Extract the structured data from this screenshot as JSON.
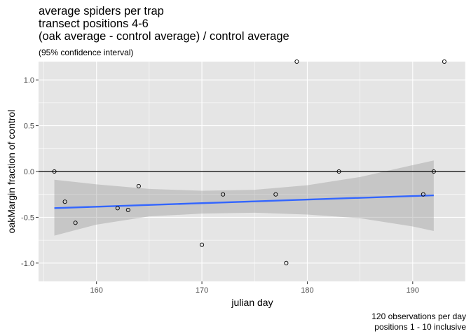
{
  "chart_data": {
    "type": "scatter",
    "title_lines": [
      "average spiders per trap",
      "transect positions 4-6",
      "(oak average - control average) / control average"
    ],
    "subtitle": "(95% confidence interval)",
    "xlabel": "julian day",
    "ylabel": "oakMargin fraction of control",
    "caption_lines": [
      "120 observations per day",
      "positions 1 - 10 inclusive"
    ],
    "xlim": [
      154.5,
      195
    ],
    "ylim": [
      -1.2,
      1.2
    ],
    "x_ticks": [
      160,
      170,
      180,
      190
    ],
    "y_ticks": [
      -1.0,
      -0.5,
      0.0,
      0.5,
      1.0
    ],
    "y_tick_labels": [
      "-1.0",
      "-0.5",
      "0.0",
      "0.5",
      "1.0"
    ],
    "grid": true,
    "reference_line_y": 0,
    "points": [
      {
        "x": 156,
        "y": 0.0
      },
      {
        "x": 157,
        "y": -0.33
      },
      {
        "x": 158,
        "y": -0.56
      },
      {
        "x": 162,
        "y": -0.4
      },
      {
        "x": 163,
        "y": -0.42
      },
      {
        "x": 164,
        "y": -0.16
      },
      {
        "x": 170,
        "y": -0.8
      },
      {
        "x": 172,
        "y": -0.25
      },
      {
        "x": 177,
        "y": -0.25
      },
      {
        "x": 178,
        "y": -1.0
      },
      {
        "x": 179,
        "y": 1.2
      },
      {
        "x": 183,
        "y": 0.0
      },
      {
        "x": 191,
        "y": -0.25
      },
      {
        "x": 192,
        "y": 0.0
      },
      {
        "x": 193,
        "y": 1.2
      }
    ],
    "fit": {
      "x": [
        156,
        192
      ],
      "y": [
        -0.4,
        -0.26
      ],
      "band_x": [
        156,
        160,
        165,
        170,
        175,
        180,
        185,
        190,
        192
      ],
      "band_lower": [
        -0.7,
        -0.58,
        -0.49,
        -0.46,
        -0.45,
        -0.47,
        -0.51,
        -0.6,
        -0.65
      ],
      "band_upper": [
        -0.09,
        -0.14,
        -0.19,
        -0.21,
        -0.2,
        -0.15,
        -0.06,
        0.07,
        0.12
      ],
      "line_color": "#3366ff",
      "band_color": "#999999"
    },
    "panel_color": "#e5e5e5",
    "grid_color": "#ffffff"
  }
}
